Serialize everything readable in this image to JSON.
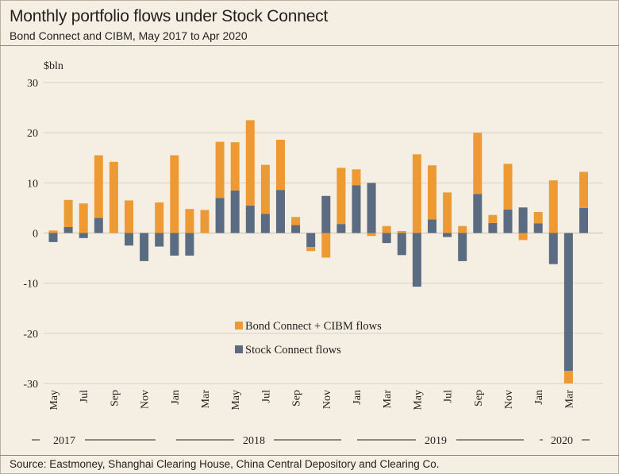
{
  "header": {
    "title": "Monthly portfolio flows under Stock Connect",
    "subtitle": "Bond Connect and CIBM, May 2017 to Apr 2020"
  },
  "footer": {
    "source": "Source: Eastmoney, Shanghai Clearing House, China Central Depository and Clearing Co."
  },
  "colors": {
    "bond": "#ee9a34",
    "stock": "#5b6b82",
    "grid": "#d8d1c1",
    "axis": "#231f20"
  },
  "chart_data": {
    "type": "bar",
    "title": "Monthly portfolio flows under Stock Connect",
    "ylabel": "$bln",
    "ylim": [
      -30,
      30
    ],
    "yticks": [
      30,
      20,
      10,
      0,
      -10,
      -20,
      -30
    ],
    "categories": [
      "May 2017",
      "Jun 2017",
      "Jul 2017",
      "Aug 2017",
      "Sep 2017",
      "Oct 2017",
      "Nov 2017",
      "Dec 2017",
      "Jan 2018",
      "Feb 2018",
      "Mar 2018",
      "Apr 2018",
      "May 2018",
      "Jun 2018",
      "Jul 2018",
      "Aug 2018",
      "Sep 2018",
      "Oct 2018",
      "Nov 2018",
      "Dec 2018",
      "Jan 2019",
      "Feb 2019",
      "Mar 2019",
      "Apr 2019",
      "May 2019",
      "Jun 2019",
      "Jul 2019",
      "Aug 2019",
      "Sep 2019",
      "Oct 2019",
      "Nov 2019",
      "Dec 2019",
      "Jan 2020",
      "Feb 2020",
      "Mar 2020",
      "Apr 2020"
    ],
    "x_tick_labels": [
      "May",
      "",
      "Jul",
      "",
      "Sep",
      "",
      "Nov",
      "",
      "Jan",
      "",
      "Mar",
      "",
      "May",
      "",
      "Jul",
      "",
      "Sep",
      "",
      "Nov",
      "",
      "Jan",
      "",
      "Mar",
      "",
      "May",
      "",
      "Jul",
      "",
      "Sep",
      "",
      "Nov",
      "",
      "Jan",
      "",
      "Mar",
      ""
    ],
    "year_labels": [
      "2017",
      "2018",
      "2019",
      "2020"
    ],
    "series": [
      {
        "name": "Stock Connect flows",
        "values": [
          -1.8,
          1.2,
          -1.0,
          3.0,
          0,
          -2.5,
          -5.6,
          -2.7,
          -4.5,
          -4.5,
          0,
          7.0,
          8.5,
          5.5,
          3.8,
          8.6,
          1.6,
          -2.8,
          7.4,
          1.8,
          9.5,
          10.0,
          -2.0,
          -4.4,
          -10.7,
          2.7,
          -0.8,
          -5.6,
          7.8,
          2.0,
          4.7,
          5.1,
          1.9,
          -6.2,
          -27.5,
          5.0
        ]
      },
      {
        "name": "Bond Connect + CIBM flows",
        "values": [
          0.5,
          5.4,
          5.9,
          12.5,
          14.2,
          6.5,
          0,
          6.1,
          15.5,
          4.8,
          4.6,
          11.2,
          9.6,
          17.0,
          9.8,
          10.0,
          1.6,
          -0.8,
          -4.9,
          11.2,
          3.2,
          -0.6,
          1.4,
          0.4,
          15.7,
          10.8,
          8.1,
          1.4,
          12.2,
          1.6,
          9.1,
          -1.4,
          2.3,
          10.5,
          -2.5,
          7.2
        ]
      }
    ],
    "legend": [
      "Bond Connect + CIBM flows",
      "Stock Connect flows"
    ],
    "legend_position": "center-bottom"
  }
}
